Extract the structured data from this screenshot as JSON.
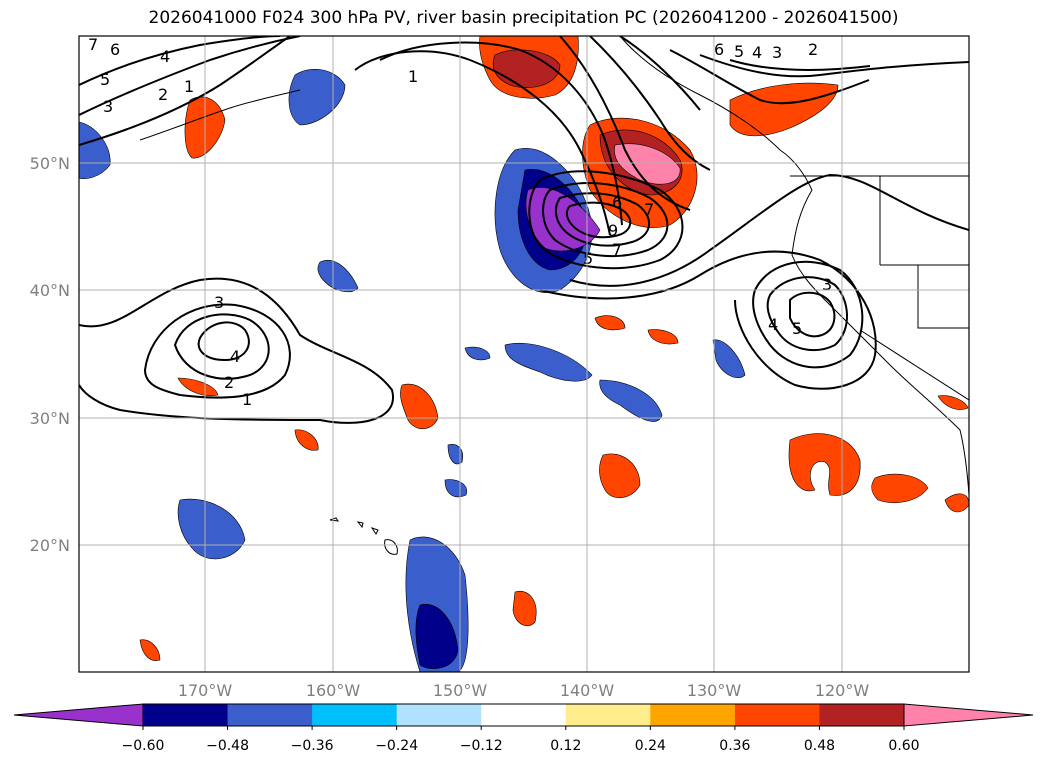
{
  "title": "2026041000 F024 300 hPa PV, river basin precipitation PC (2026041200 - 2026041500)",
  "lat_labels": [
    "50°N",
    "40°N",
    "30°N",
    "20°N"
  ],
  "lon_labels": [
    "170°W",
    "160°W",
    "150°W",
    "140°W",
    "130°W",
    "120°W"
  ],
  "colorbar": {
    "ticks": [
      "−0.60",
      "−0.48",
      "−0.36",
      "−0.24",
      "−0.12",
      "0.12",
      "0.24",
      "0.36",
      "0.48",
      "0.60"
    ],
    "colors": [
      "#9932CC",
      "#00008B",
      "#3A5FCD",
      "#00BFFF",
      "#B0E2FF",
      "#FFFFFF",
      "#FFEC8B",
      "#FFA500",
      "#FF4500",
      "#B22222",
      "#FF82AB"
    ]
  },
  "contour_labels": [
    "7",
    "6",
    "5",
    "4",
    "3",
    "2",
    "1",
    "1",
    "3",
    "4",
    "2",
    "1",
    "6",
    "5",
    "4",
    "3",
    "2",
    "6",
    "7",
    "9",
    "5",
    "7",
    "3",
    "4",
    "5"
  ]
}
